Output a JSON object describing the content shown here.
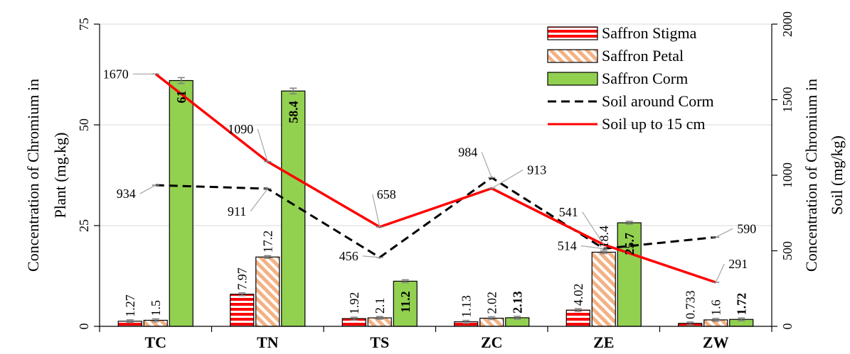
{
  "chart_data": {
    "type": "bar",
    "categories": [
      "TC",
      "TN",
      "TS",
      "ZC",
      "ZE",
      "ZW"
    ],
    "ylabel_left": [
      "Concentration of Chromium in",
      "Plant  (mg.kg)"
    ],
    "ylabel_right": [
      "Concentration of Chromium in",
      "Soil (mg/kg)"
    ],
    "ylim_left": [
      0,
      75
    ],
    "ylim_right": [
      0,
      2000
    ],
    "yticks_left": [
      0,
      25,
      50,
      75
    ],
    "yticks_right": [
      0,
      500,
      1000,
      1500,
      2000
    ],
    "grid": true,
    "legend_position": "top-right",
    "bar_series": [
      {
        "name": "Saffron Stigma",
        "values": [
          1.27,
          7.97,
          1.92,
          1.13,
          4.02,
          0.733
        ],
        "labels": [
          "1.27",
          "7.97",
          "1.92",
          "1.13",
          "4.02",
          "0.733"
        ],
        "fill": "#ff0000",
        "pattern": "horizontal-stripes",
        "bold_labels": false
      },
      {
        "name": "Saffron Petal",
        "values": [
          1.5,
          17.2,
          2.1,
          2.02,
          18.4,
          1.6
        ],
        "labels": [
          "1.5",
          "17.2",
          "2.1",
          "2.02",
          "18.4",
          "1.6"
        ],
        "fill": "#f4b183",
        "pattern": "diagonal-stripes",
        "bold_labels": false
      },
      {
        "name": "Saffron Corm",
        "values": [
          61,
          58.4,
          11.2,
          2.13,
          25.7,
          1.72
        ],
        "labels": [
          "61",
          "58.4",
          "11.2",
          "2.13",
          "25.7",
          "1.72"
        ],
        "fill": "#92d050",
        "pattern": "solid",
        "bold_labels": true
      }
    ],
    "line_series": [
      {
        "name": "Soil around Corm",
        "axis": "right",
        "values": [
          934,
          911,
          456,
          984,
          514,
          590
        ],
        "labels": [
          "934",
          "911",
          "456",
          "984",
          "514",
          "590"
        ],
        "color": "#000000",
        "dash": "dashed"
      },
      {
        "name": "Soil up to 15 cm",
        "axis": "right",
        "values": [
          1670,
          1090,
          658,
          913,
          541,
          291
        ],
        "labels": [
          "1670",
          "1090",
          "658",
          "913",
          "541",
          "291"
        ],
        "color": "#ff0000",
        "dash": "solid"
      }
    ]
  }
}
